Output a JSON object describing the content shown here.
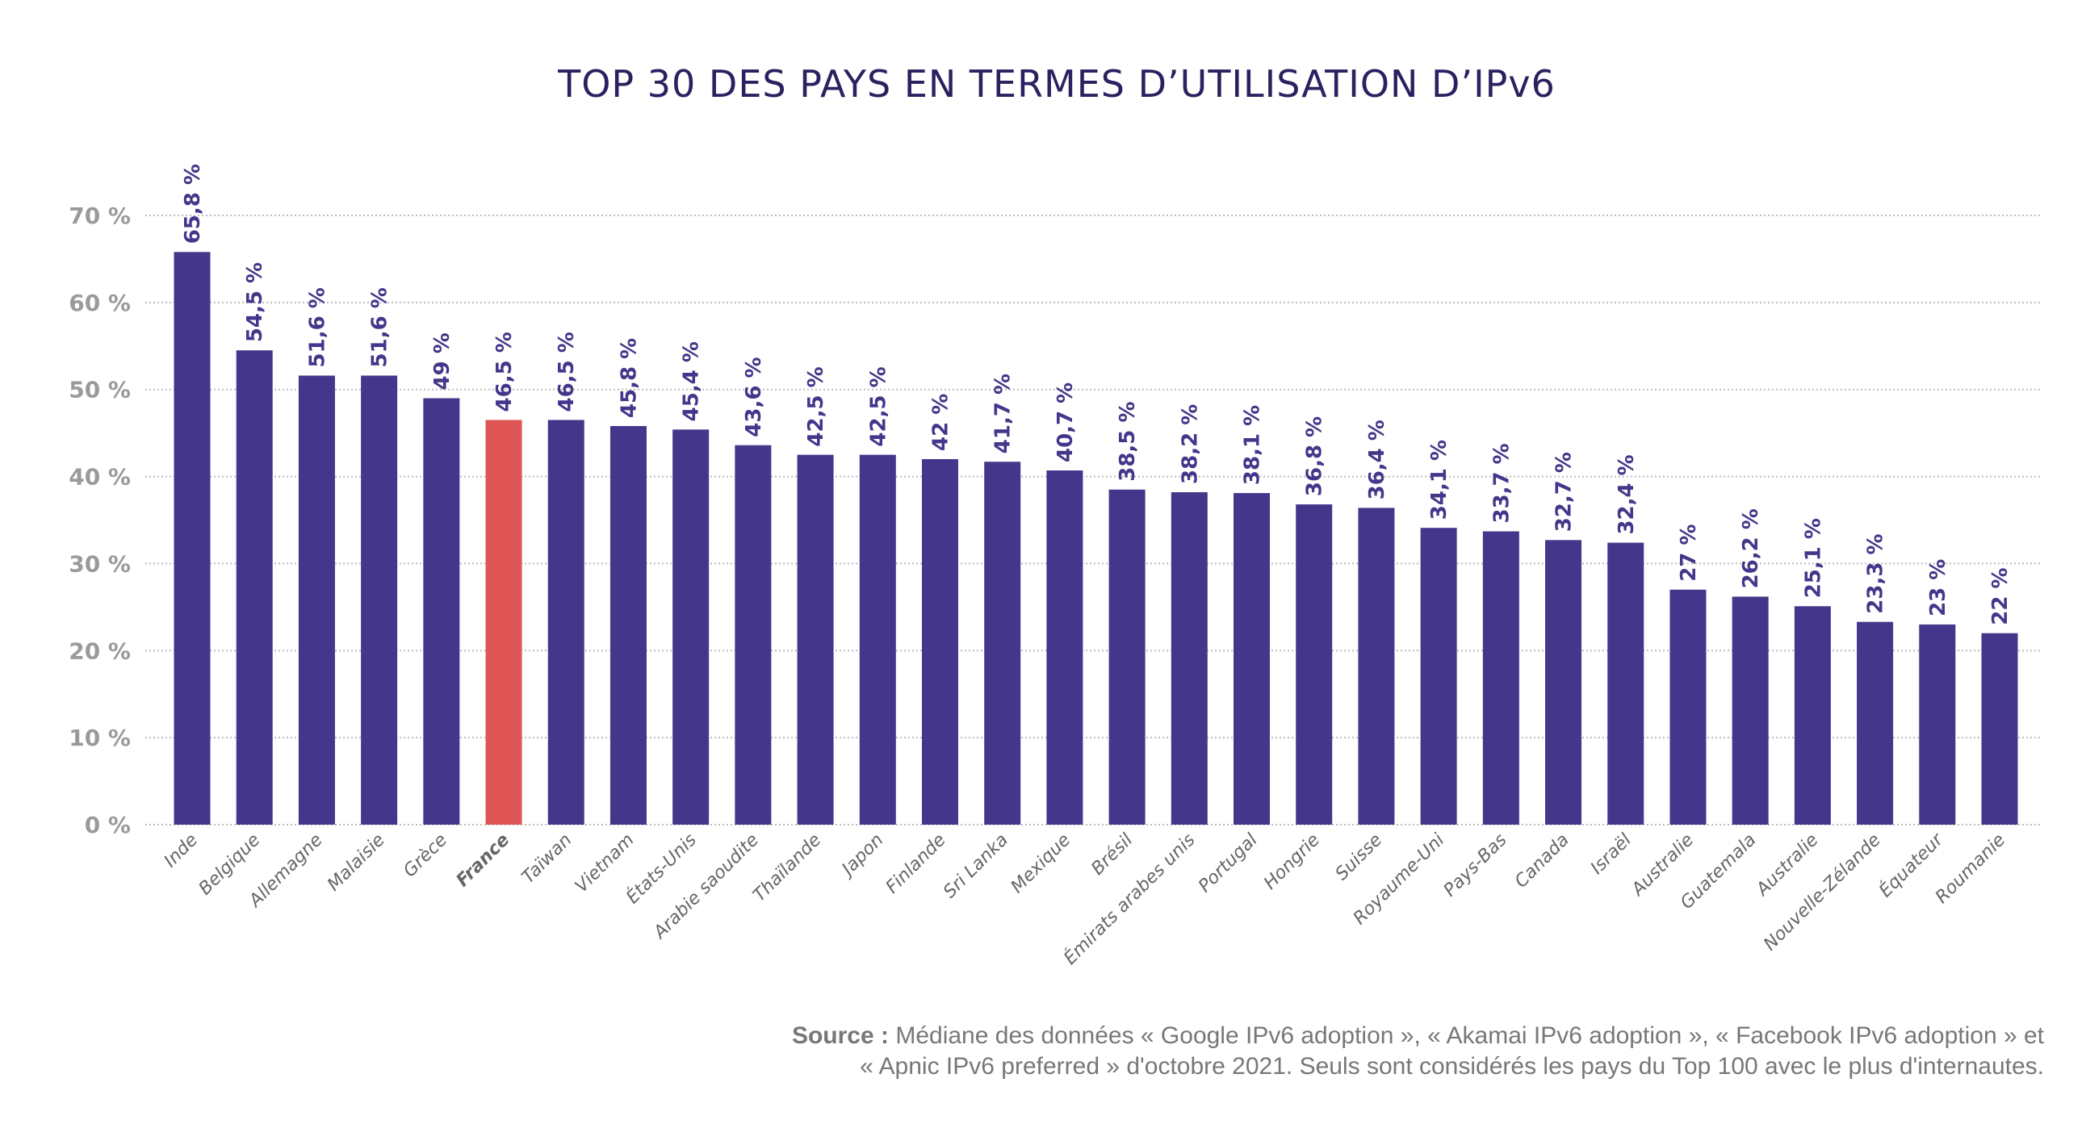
{
  "chart_data": {
    "type": "bar",
    "title": "TOP 30 DES PAYS EN TERMES D’UTILISATION D’IPv6",
    "xlabel": "",
    "ylabel": "",
    "ylim": [
      0,
      70
    ],
    "yticks": [
      "0 %",
      "10 %",
      "20 %",
      "30 %",
      "40 %",
      "50 %",
      "60 %",
      "70 %"
    ],
    "grid": true,
    "categories": [
      "Inde",
      "Belgique",
      "Allemagne",
      "Malaisie",
      "Grèce",
      "France",
      "Taïwan",
      "Vietnam",
      "États-Unis",
      "Arabie saoudite",
      "Thaïlande",
      "Japon",
      "Finlande",
      "Sri Lanka",
      "Mexique",
      "Brésil",
      "Émirats arabes unis",
      "Portugal",
      "Hongrie",
      "Suisse",
      "Royaume-Uni",
      "Pays-Bas",
      "Canada",
      "Israël",
      "Australie",
      "Guatemala",
      "Australie",
      "Nouvelle-Zélande",
      "Équateur",
      "Roumanie"
    ],
    "values": [
      65.8,
      54.5,
      51.6,
      51.6,
      49,
      46.5,
      46.5,
      45.8,
      45.4,
      43.6,
      42.5,
      42.5,
      42,
      41.7,
      40.7,
      38.5,
      38.2,
      38.1,
      36.8,
      36.4,
      34.1,
      33.7,
      32.7,
      32.4,
      27,
      26.2,
      25.1,
      23.3,
      23,
      22
    ],
    "value_labels": [
      "65,8 %",
      "54,5 %",
      "51,6 %",
      "51,6 %",
      "49 %",
      "46,5 %",
      "46,5 %",
      "45,8 %",
      "45,4 %",
      "43,6 %",
      "42,5 %",
      "42,5 %",
      "42 %",
      "41,7 %",
      "40,7 %",
      "38,5 %",
      "38,2 %",
      "38,1 %",
      "36,8 %",
      "36,4 %",
      "34,1 %",
      "33,7 %",
      "32,7 %",
      "32,4 %",
      "27 %",
      "26,2 %",
      "25,1 %",
      "23,3 %",
      "23 %",
      "22 %"
    ],
    "highlight": "France",
    "colors": {
      "bar": "#44368a",
      "highlight": "#e05555",
      "title": "#2d2060"
    }
  },
  "source": {
    "label": "Source :",
    "text_line1": "Médiane des données « Google IPv6 adoption », « Akamai IPv6 adoption », « Facebook IPv6 adoption » et",
    "text_line2": "« Apnic IPv6 preferred » d'octobre 2021. Seuls sont considérés les pays du Top 100 avec le plus d'internautes."
  }
}
